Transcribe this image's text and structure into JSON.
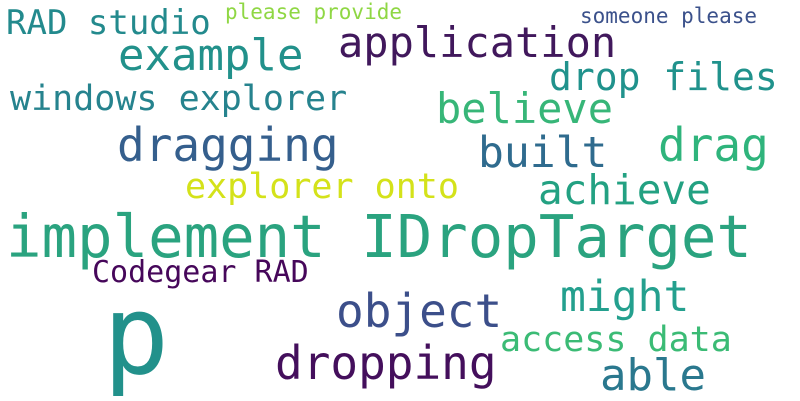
{
  "words": [
    {
      "text": "p",
      "color": "#22918b"
    },
    {
      "text": "implement IDropTarget",
      "color": "#2aa37f"
    },
    {
      "text": "application",
      "color": "#41185c"
    },
    {
      "text": "example",
      "color": "#22918b"
    },
    {
      "text": "RAD studio",
      "color": "#238a8d"
    },
    {
      "text": "windows explorer",
      "color": "#26838e"
    },
    {
      "text": "dragging",
      "color": "#355f8d"
    },
    {
      "text": "drop files",
      "color": "#20928c"
    },
    {
      "text": "believe",
      "color": "#37b678"
    },
    {
      "text": "built",
      "color": "#2f6b8e"
    },
    {
      "text": "drag",
      "color": "#2fb47c"
    },
    {
      "text": "explorer onto",
      "color": "#d4e21a"
    },
    {
      "text": "achieve",
      "color": "#23a182"
    },
    {
      "text": "Codegear RAD",
      "color": "#46075a"
    },
    {
      "text": "object",
      "color": "#3c4f8a"
    },
    {
      "text": "might",
      "color": "#24a08e"
    },
    {
      "text": "access data",
      "color": "#3bbb75"
    },
    {
      "text": "dropping",
      "color": "#440f5c"
    },
    {
      "text": "able",
      "color": "#2a788e"
    },
    {
      "text": "please provide",
      "color": "#8fd744"
    },
    {
      "text": "someone please",
      "color": "#3b518b"
    }
  ]
}
